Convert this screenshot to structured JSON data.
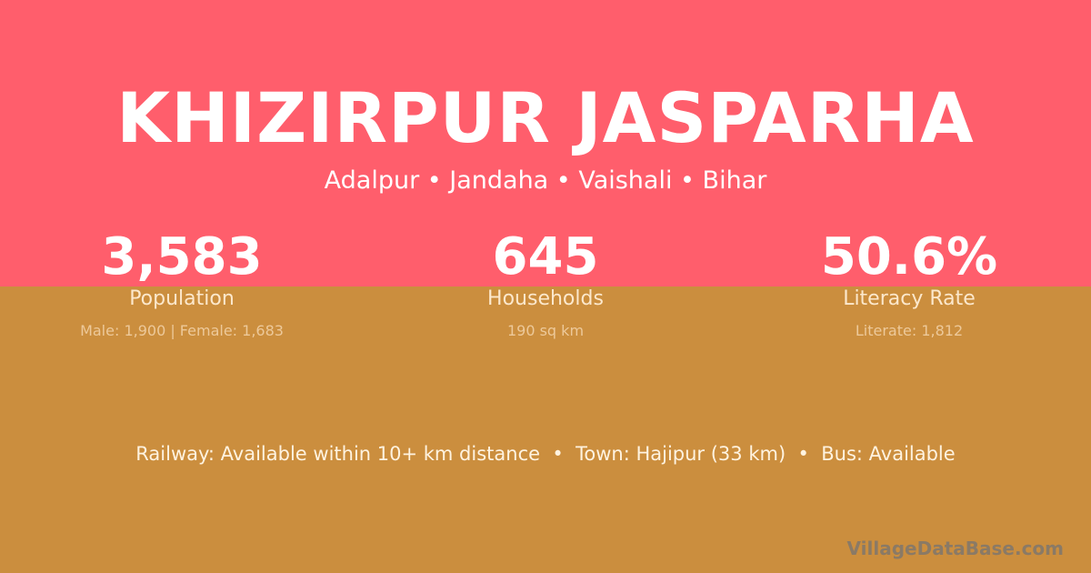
{
  "colors": {
    "top": "#FF5E6C",
    "bottom": "#CB8E3E"
  },
  "title": "KHIZIRPUR JASPARHA",
  "location": "Adalpur • Jandaha • Vaishali • Bihar",
  "stats": [
    {
      "value": "3,583",
      "label": "Population",
      "detail": "Male: 1,900 | Female: 1,683"
    },
    {
      "value": "645",
      "label": "Households",
      "detail": "190 sq km"
    },
    {
      "value": "50.6%",
      "label": "Literacy Rate",
      "detail": "Literate: 1,812"
    }
  ],
  "amenities": "Railway: Available within 10+ km distance  •  Town: Hajipur (33 km)  •  Bus: Available",
  "watermark": "VillageDataBase.com"
}
